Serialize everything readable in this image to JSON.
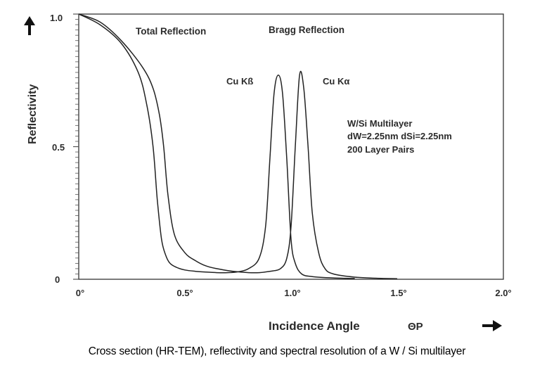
{
  "chart_data": {
    "type": "line",
    "ylabel": "Reflectivity",
    "xlabel": "Incidence Angle",
    "xlabel_symbol": "ΘP",
    "xlim": [
      0,
      2.0
    ],
    "ylim": [
      0,
      1.0
    ],
    "x_ticks": [
      "0°",
      "0.5°",
      "1.0°",
      "1.5°",
      "2.0°"
    ],
    "y_ticks": [
      "0",
      "0.5",
      "1.0"
    ],
    "annotations": {
      "total_reflection": "Total Reflection",
      "bragg_reflection": "Bragg Reflection",
      "cu_kbeta": "Cu Kß",
      "cu_kalpha": "Cu Kα",
      "sample_line1": "W/Si  Multilayer",
      "sample_line2": "dW=2.25nm  dSi=2.25nm",
      "sample_line3": "200 Layer Pairs"
    },
    "series": [
      {
        "name": "Cu Kß",
        "x": [
          0,
          0.1,
          0.2,
          0.28,
          0.32,
          0.35,
          0.37,
          0.39,
          0.41,
          0.43,
          0.46,
          0.5,
          0.55,
          0.6,
          0.65,
          0.7,
          0.75,
          0.8,
          0.85,
          0.88,
          0.9,
          0.92,
          0.94,
          0.96,
          0.98,
          1.0,
          1.02,
          1.05,
          1.1,
          1.2,
          1.3
        ],
        "values": [
          1.0,
          0.96,
          0.89,
          0.78,
          0.66,
          0.5,
          0.3,
          0.15,
          0.09,
          0.06,
          0.045,
          0.035,
          0.03,
          0.027,
          0.025,
          0.025,
          0.028,
          0.04,
          0.08,
          0.2,
          0.45,
          0.7,
          0.77,
          0.7,
          0.45,
          0.15,
          0.06,
          0.02,
          0.01,
          0.005,
          0.003
        ]
      },
      {
        "name": "Cu Kα",
        "x": [
          0,
          0.1,
          0.2,
          0.3,
          0.35,
          0.38,
          0.4,
          0.42,
          0.45,
          0.5,
          0.55,
          0.6,
          0.65,
          0.7,
          0.75,
          0.8,
          0.85,
          0.9,
          0.95,
          0.98,
          1.0,
          1.02,
          1.04,
          1.06,
          1.08,
          1.1,
          1.13,
          1.16,
          1.2,
          1.3,
          1.4,
          1.5
        ],
        "values": [
          1.0,
          0.97,
          0.9,
          0.8,
          0.72,
          0.62,
          0.5,
          0.32,
          0.17,
          0.1,
          0.07,
          0.05,
          0.04,
          0.033,
          0.028,
          0.025,
          0.025,
          0.03,
          0.04,
          0.08,
          0.2,
          0.5,
          0.77,
          0.72,
          0.5,
          0.25,
          0.1,
          0.04,
          0.02,
          0.008,
          0.004,
          0.002
        ]
      }
    ]
  },
  "caption": "Cross section (HR-TEM), reflectivity and spectral resolution of a W / Si multilayer"
}
